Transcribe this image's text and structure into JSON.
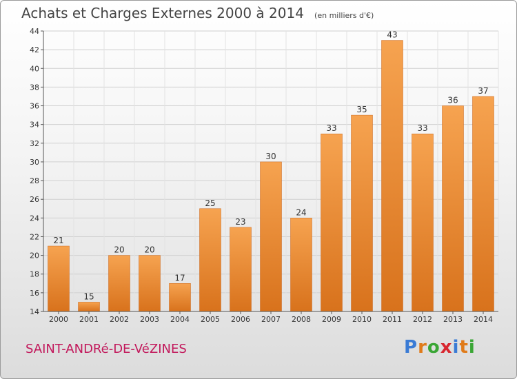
{
  "header": {
    "title": "Achats et Charges Externes 2000 à 2014",
    "subtitle": "(en milliers d'€)"
  },
  "footer": {
    "commune": "SAINT-ANDRé-DE-VéZINES",
    "logo_letters": [
      "P",
      "r",
      "o",
      "x",
      "i",
      "t",
      "i"
    ],
    "logo_colors": [
      "#3a7bd5",
      "#e07b1a",
      "#3aa635",
      "#d8262f",
      "#3a7bd5",
      "#e07b1a",
      "#3aa635"
    ]
  },
  "chart_data": {
    "type": "bar",
    "title": "Achats et Charges Externes 2000 à 2014",
    "subtitle": "(en milliers d'€)",
    "categories": [
      "2000",
      "2001",
      "2002",
      "2003",
      "2004",
      "2005",
      "2006",
      "2007",
      "2008",
      "2009",
      "2010",
      "2011",
      "2012",
      "2013",
      "2014"
    ],
    "values": [
      21,
      15,
      20,
      20,
      17,
      25,
      23,
      30,
      24,
      33,
      35,
      43,
      33,
      36,
      37
    ],
    "ylim": [
      14,
      44
    ],
    "yticks": [
      14,
      16,
      18,
      20,
      22,
      24,
      26,
      28,
      30,
      32,
      34,
      36,
      38,
      40,
      42,
      44
    ],
    "grid": true,
    "bar_color": "#f0963a",
    "bar_color_dark": "#d9731c"
  }
}
